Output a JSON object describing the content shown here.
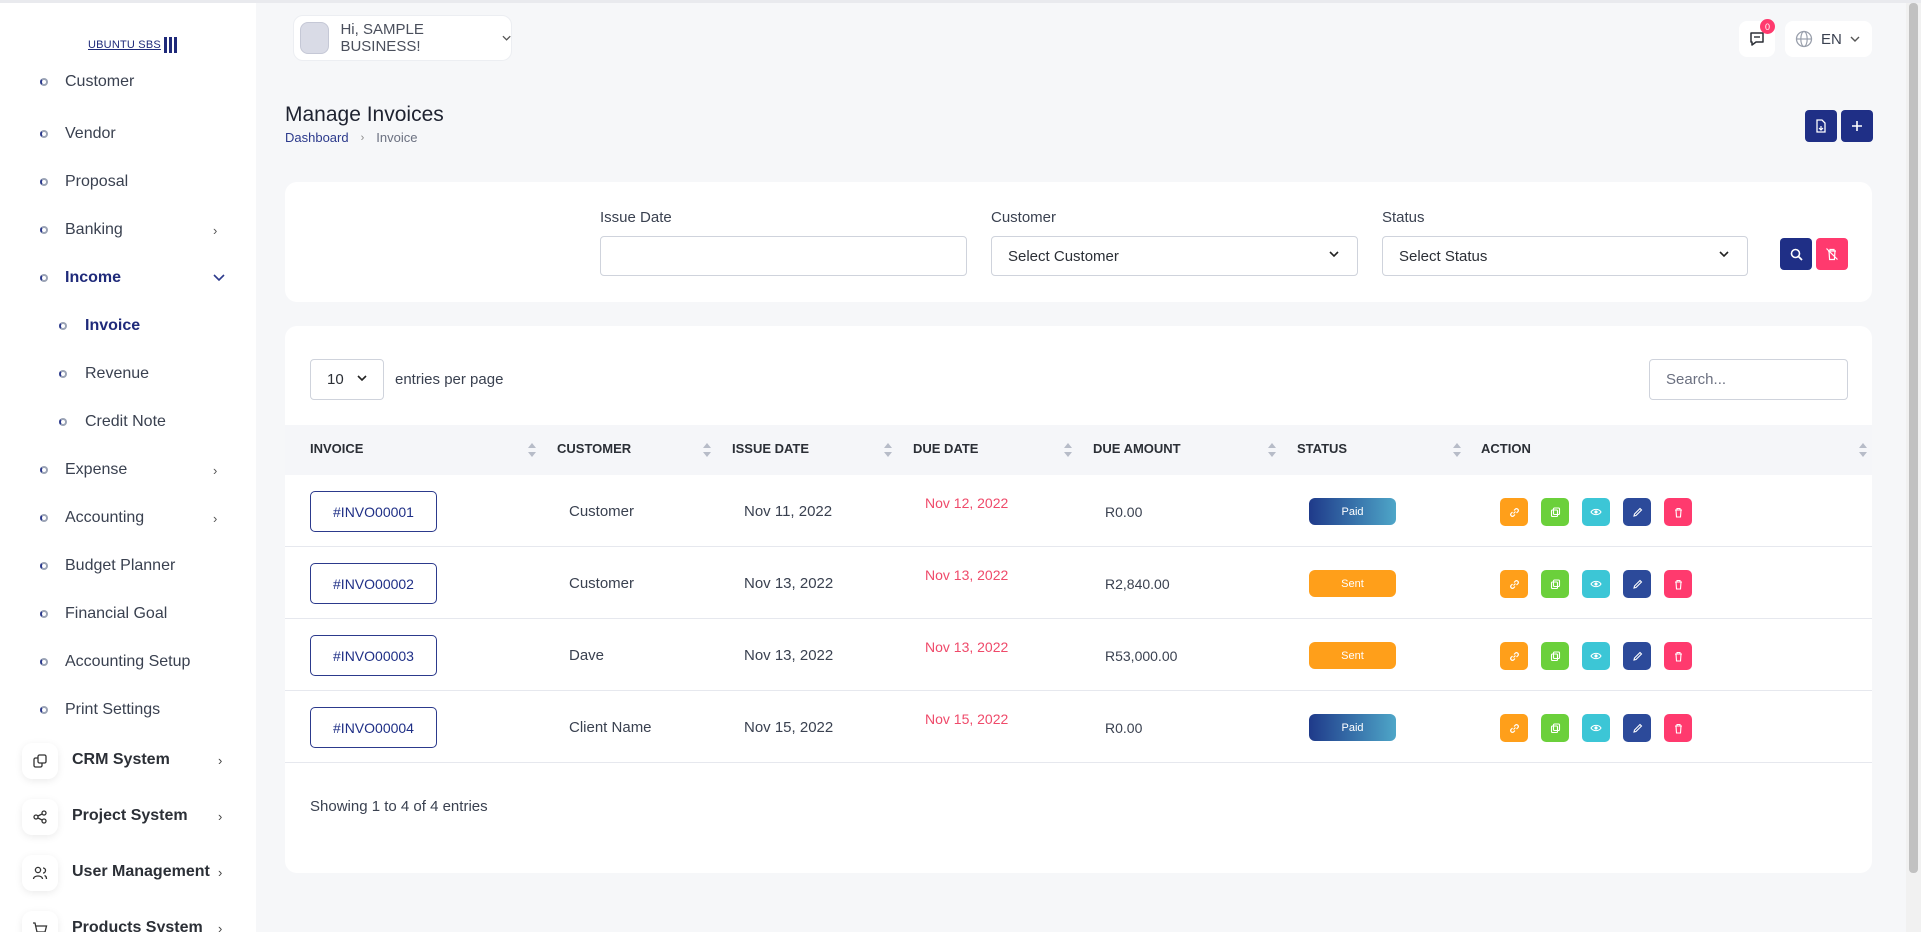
{
  "app": {
    "logo_text": "UBUNTU SBS"
  },
  "sidebar": {
    "items": [
      {
        "label": "Customer",
        "active": false,
        "has_children": false
      },
      {
        "label": "Vendor",
        "active": false,
        "has_children": false
      },
      {
        "label": "Proposal",
        "active": false,
        "has_children": false
      },
      {
        "label": "Banking",
        "active": false,
        "has_children": true
      },
      {
        "label": "Income",
        "active": true,
        "has_children": true,
        "expanded": true
      },
      {
        "label": "Invoice",
        "active": true,
        "sub": true
      },
      {
        "label": "Revenue",
        "active": false,
        "sub": true
      },
      {
        "label": "Credit Note",
        "active": false,
        "sub": true
      },
      {
        "label": "Expense",
        "active": false,
        "has_children": true
      },
      {
        "label": "Accounting",
        "active": false,
        "has_children": true
      },
      {
        "label": "Budget Planner",
        "active": false,
        "has_children": false
      },
      {
        "label": "Financial Goal",
        "active": false,
        "has_children": false
      },
      {
        "label": "Accounting Setup",
        "active": false,
        "has_children": false
      },
      {
        "label": "Print Settings",
        "active": false,
        "has_children": false
      }
    ],
    "sections": [
      {
        "label": "CRM System",
        "icon": "crm-icon"
      },
      {
        "label": "Project System",
        "icon": "share-icon"
      },
      {
        "label": "User Management",
        "icon": "users-icon"
      },
      {
        "label": "Products System",
        "icon": "cart-icon"
      }
    ]
  },
  "header": {
    "greeting": "Hi, SAMPLE BUSINESS!",
    "notifications_count": "0",
    "language": "EN"
  },
  "page": {
    "title": "Manage Invoices",
    "breadcrumb": {
      "home": "Dashboard",
      "current": "Invoice"
    }
  },
  "filters": {
    "issue_date_label": "Issue Date",
    "issue_date_value": "",
    "customer_label": "Customer",
    "customer_value": "Select Customer",
    "status_label": "Status",
    "status_value": "Select Status"
  },
  "table": {
    "per_page": "10",
    "per_page_label": "entries per page",
    "search_placeholder": "Search...",
    "columns": [
      "INVOICE",
      "CUSTOMER",
      "ISSUE DATE",
      "DUE DATE",
      "DUE AMOUNT",
      "STATUS",
      "ACTION"
    ],
    "rows": [
      {
        "invoice": "#INVO00001",
        "customer": "Customer",
        "issue_date": "Nov 11, 2022",
        "due_date": "Nov 12, 2022",
        "due_amount": "R0.00",
        "status": "Paid"
      },
      {
        "invoice": "#INVO00002",
        "customer": "Customer",
        "issue_date": "Nov 13, 2022",
        "due_date": "Nov 13, 2022",
        "due_amount": "R2,840.00",
        "status": "Sent"
      },
      {
        "invoice": "#INVO00003",
        "customer": "Dave",
        "issue_date": "Nov 13, 2022",
        "due_date": "Nov 13, 2022",
        "due_amount": "R53,000.00",
        "status": "Sent"
      },
      {
        "invoice": "#INVO00004",
        "customer": "Client Name",
        "issue_date": "Nov 15, 2022",
        "due_date": "Nov 15, 2022",
        "due_amount": "R0.00",
        "status": "Paid"
      }
    ],
    "footer": "Showing 1 to 4 of 4 entries"
  },
  "colors": {
    "primary": "#1f2f86",
    "danger": "#ff3a6e",
    "paid_gradient": [
      "#1f3a8a",
      "#4ea6c8"
    ],
    "sent": "#ff9f1a",
    "due_date": "#ef4a6a",
    "action_link": "#ff9f1a",
    "action_copy": "#6bd03b",
    "action_view": "#3cc6d6",
    "action_edit": "#2c4a9a",
    "action_delete": "#ff3a6e"
  }
}
